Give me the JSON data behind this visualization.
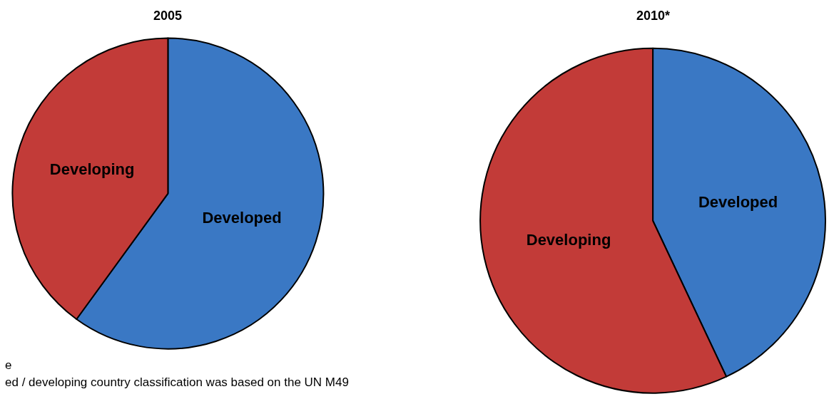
{
  "chart_data": [
    {
      "type": "pie",
      "title": "2005",
      "categories": [
        "Developed",
        "Developing"
      ],
      "values": [
        60,
        40
      ],
      "colors": [
        "#3a78c4",
        "#c23b38"
      ],
      "annotations": [
        "e",
        "ed / developing country classification was based on the UN M49"
      ]
    },
    {
      "type": "pie",
      "title": "2010*",
      "categories": [
        "Developed",
        "Developing"
      ],
      "values": [
        43,
        57
      ],
      "colors": [
        "#3a78c4",
        "#c23b38"
      ]
    }
  ]
}
